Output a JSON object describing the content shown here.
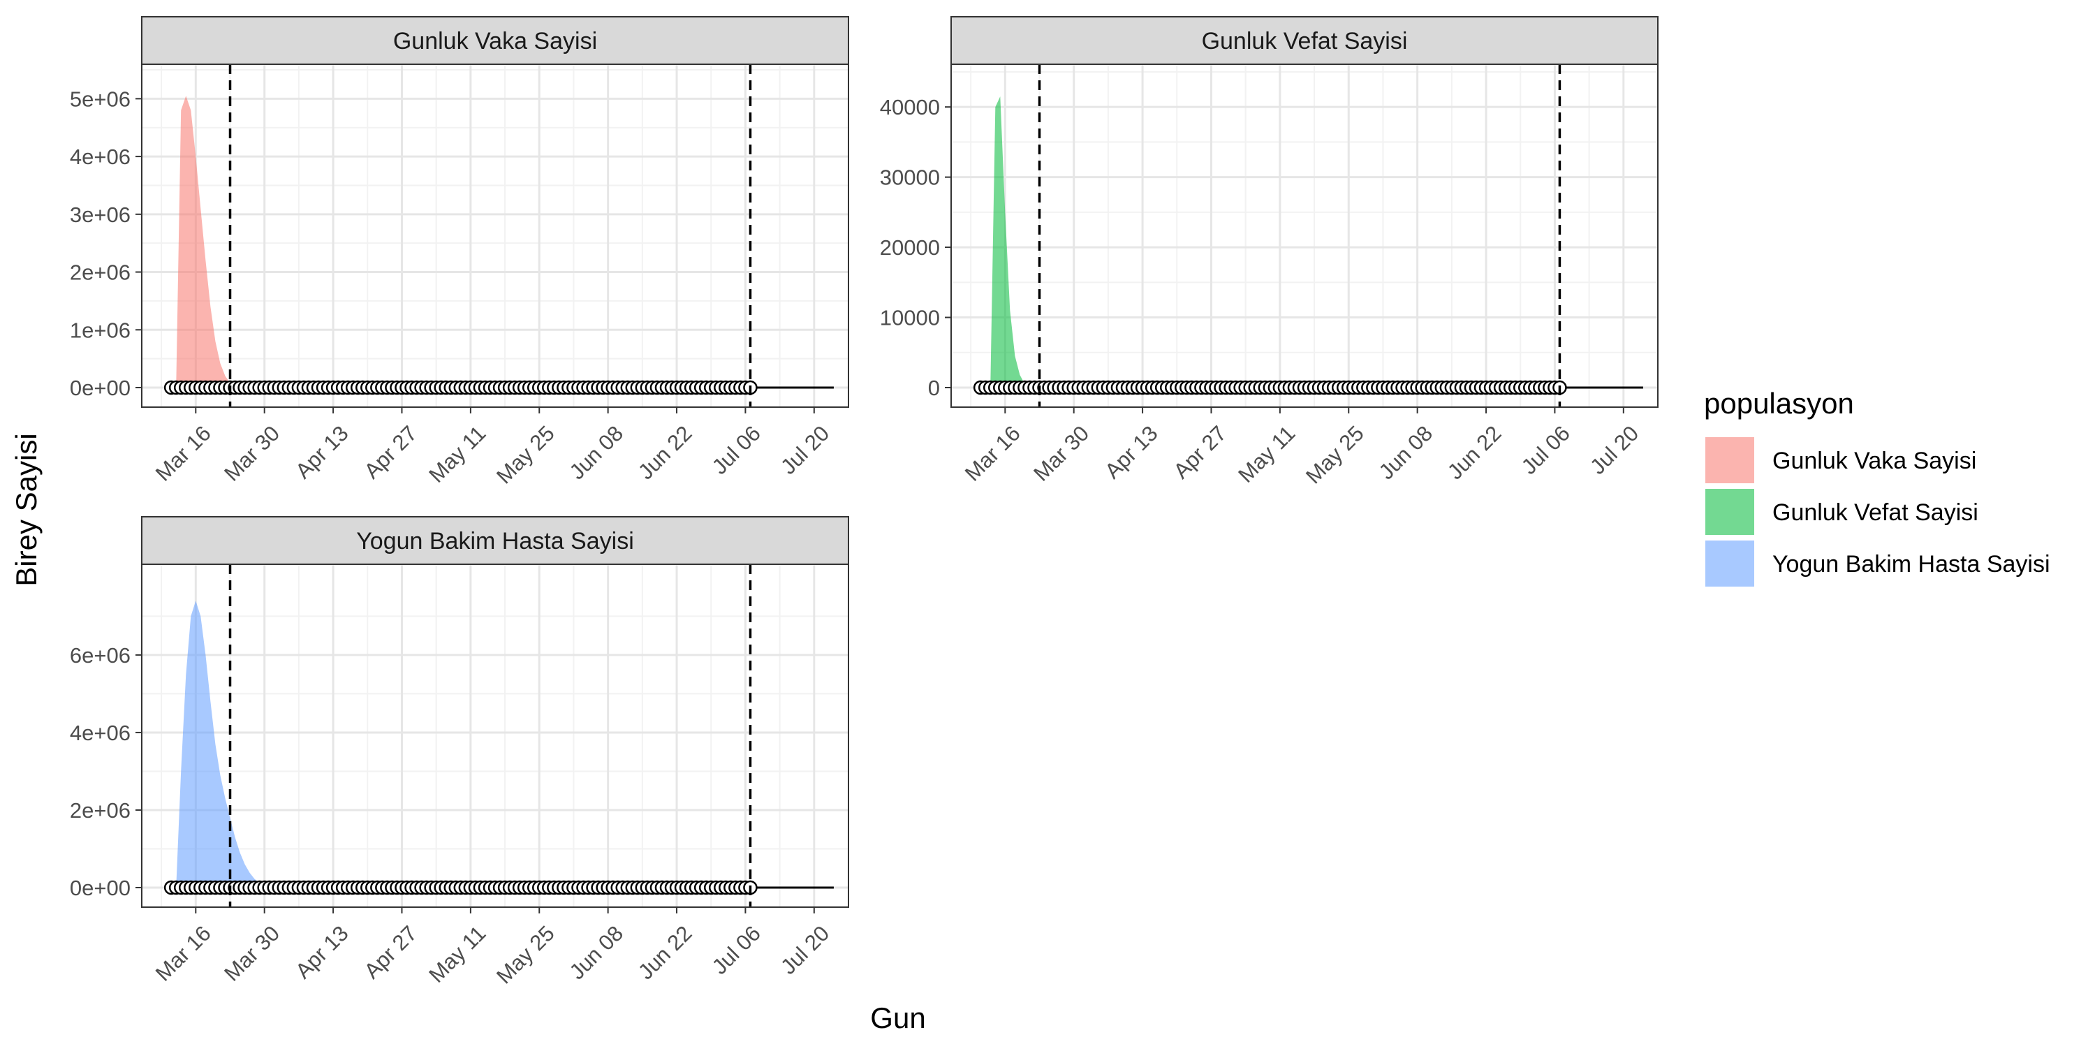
{
  "chart_data": {
    "type": "area",
    "xlabel": "Gun",
    "ylabel": "Birey Sayisi",
    "x_domain": [
      "2020-03-05",
      "2020-07-27"
    ],
    "x_ticks": [
      {
        "date": "2020-03-16",
        "label": "Mar 16"
      },
      {
        "date": "2020-03-30",
        "label": "Mar 30"
      },
      {
        "date": "2020-04-13",
        "label": "Apr 13"
      },
      {
        "date": "2020-04-27",
        "label": "Apr 27"
      },
      {
        "date": "2020-05-11",
        "label": "May 11"
      },
      {
        "date": "2020-05-25",
        "label": "May 25"
      },
      {
        "date": "2020-06-08",
        "label": "Jun 08"
      },
      {
        "date": "2020-06-22",
        "label": "Jun 22"
      },
      {
        "date": "2020-07-06",
        "label": "Jul 06"
      },
      {
        "date": "2020-07-20",
        "label": "Jul 20"
      }
    ],
    "vlines": [
      "2020-03-23",
      "2020-07-07"
    ],
    "observed": {
      "start": "2020-03-11",
      "end": "2020-07-07",
      "line_end": "2020-07-24",
      "value": 0
    },
    "grid": true,
    "legend": {
      "title": "populasyon",
      "position": "right",
      "items": [
        {
          "label": "Gunluk Vaka Sayisi",
          "color": "#F8766D"
        },
        {
          "label": "Gunluk Vefat Sayisi",
          "color": "#00BA38"
        },
        {
          "label": "Yogun Bakim Hasta Sayisi",
          "color": "#619CFF"
        }
      ]
    },
    "panels": [
      {
        "title": "Gunluk Vaka Sayisi",
        "color": "#F8766D",
        "ylim": [
          0,
          5100000
        ],
        "y_ticks": [
          {
            "value": 0,
            "label": "0e+00"
          },
          {
            "value": 1000000,
            "label": "1e+06"
          },
          {
            "value": 2000000,
            "label": "2e+06"
          },
          {
            "value": 3000000,
            "label": "3e+06"
          },
          {
            "value": 4000000,
            "label": "4e+06"
          },
          {
            "value": 5000000,
            "label": "5e+06"
          }
        ],
        "points": [
          [
            "2020-03-12",
            0
          ],
          [
            "2020-03-13",
            4800000
          ],
          [
            "2020-03-14",
            5050000
          ],
          [
            "2020-03-15",
            4800000
          ],
          [
            "2020-03-16",
            4000000
          ],
          [
            "2020-03-17",
            3100000
          ],
          [
            "2020-03-18",
            2200000
          ],
          [
            "2020-03-19",
            1400000
          ],
          [
            "2020-03-20",
            800000
          ],
          [
            "2020-03-21",
            420000
          ],
          [
            "2020-03-22",
            200000
          ],
          [
            "2020-03-23",
            80000
          ],
          [
            "2020-03-24",
            0
          ]
        ]
      },
      {
        "title": "Gunluk Vefat Sayisi",
        "color": "#00BA38",
        "ylim": [
          0,
          42000
        ],
        "y_ticks": [
          {
            "value": 0,
            "label": "0"
          },
          {
            "value": 10000,
            "label": "10000"
          },
          {
            "value": 20000,
            "label": "20000"
          },
          {
            "value": 30000,
            "label": "30000"
          },
          {
            "value": 40000,
            "label": "40000"
          }
        ],
        "points": [
          [
            "2020-03-13",
            0
          ],
          [
            "2020-03-14",
            40000
          ],
          [
            "2020-03-15",
            41500
          ],
          [
            "2020-03-16",
            25000
          ],
          [
            "2020-03-17",
            11000
          ],
          [
            "2020-03-18",
            4500
          ],
          [
            "2020-03-19",
            1800
          ],
          [
            "2020-03-20",
            500
          ],
          [
            "2020-03-21",
            0
          ]
        ]
      },
      {
        "title": "Yogun Bakim Hasta Sayisi",
        "color": "#619CFF",
        "ylim": [
          0,
          7600000
        ],
        "y_ticks": [
          {
            "value": 0,
            "label": "0e+00"
          },
          {
            "value": 2000000,
            "label": "2e+06"
          },
          {
            "value": 4000000,
            "label": "4e+06"
          },
          {
            "value": 6000000,
            "label": "6e+06"
          }
        ],
        "points": [
          [
            "2020-03-12",
            0
          ],
          [
            "2020-03-13",
            3000000
          ],
          [
            "2020-03-14",
            5500000
          ],
          [
            "2020-03-15",
            7000000
          ],
          [
            "2020-03-16",
            7400000
          ],
          [
            "2020-03-17",
            7000000
          ],
          [
            "2020-03-18",
            6000000
          ],
          [
            "2020-03-19",
            4800000
          ],
          [
            "2020-03-20",
            3700000
          ],
          [
            "2020-03-21",
            2900000
          ],
          [
            "2020-03-22",
            2300000
          ],
          [
            "2020-03-23",
            1800000
          ],
          [
            "2020-03-24",
            1300000
          ],
          [
            "2020-03-25",
            900000
          ],
          [
            "2020-03-26",
            600000
          ],
          [
            "2020-03-27",
            380000
          ],
          [
            "2020-03-28",
            220000
          ],
          [
            "2020-03-29",
            120000
          ],
          [
            "2020-03-30",
            60000
          ],
          [
            "2020-03-31",
            20000
          ],
          [
            "2020-04-01",
            0
          ]
        ]
      }
    ]
  }
}
